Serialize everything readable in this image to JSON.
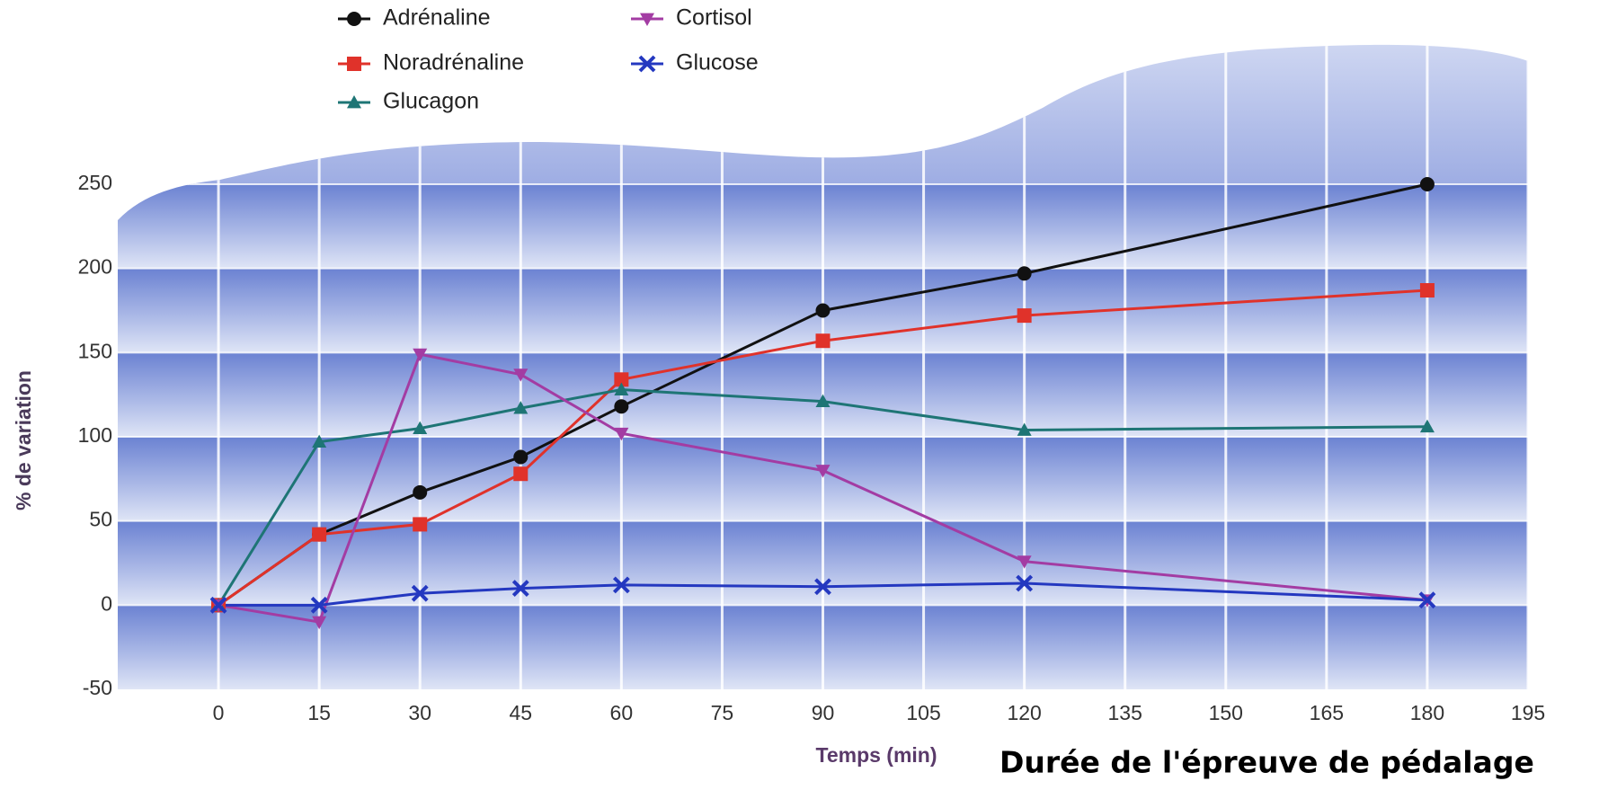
{
  "chart_data": {
    "type": "line",
    "x_label": "Temps (min)",
    "y_label": "% de variation",
    "annotation": "Durée de l'épreuve de pédalage",
    "x": [
      0,
      15,
      30,
      45,
      60,
      90,
      120,
      180
    ],
    "series": [
      {
        "name": "Adrénaline",
        "color": "#111111",
        "marker": "circle",
        "values": [
          0,
          42,
          67,
          88,
          118,
          175,
          197,
          250
        ]
      },
      {
        "name": "Noradrénaline",
        "color": "#e0322a",
        "marker": "square",
        "values": [
          0,
          42,
          48,
          78,
          134,
          157,
          172,
          187
        ]
      },
      {
        "name": "Glucagon",
        "color": "#1e7575",
        "marker": "triangle-up",
        "values": [
          0,
          97,
          105,
          117,
          128,
          121,
          104,
          106
        ]
      },
      {
        "name": "Cortisol",
        "color": "#a33ca3",
        "marker": "triangle-down",
        "values": [
          0,
          -10,
          149,
          137,
          102,
          80,
          26,
          3
        ]
      },
      {
        "name": "Glucose",
        "color": "#2438c0",
        "marker": "x",
        "values": [
          0,
          0,
          7,
          10,
          12,
          11,
          13,
          3
        ]
      }
    ],
    "xlim": [
      -15,
      195
    ],
    "ylim": [
      -50,
      250
    ],
    "xticks": [
      0,
      15,
      30,
      45,
      60,
      75,
      90,
      105,
      120,
      135,
      150,
      165,
      180,
      195
    ],
    "yticks": [
      -50,
      0,
      50,
      100,
      150,
      200,
      250
    ],
    "grid": true,
    "legend": "top-left"
  }
}
